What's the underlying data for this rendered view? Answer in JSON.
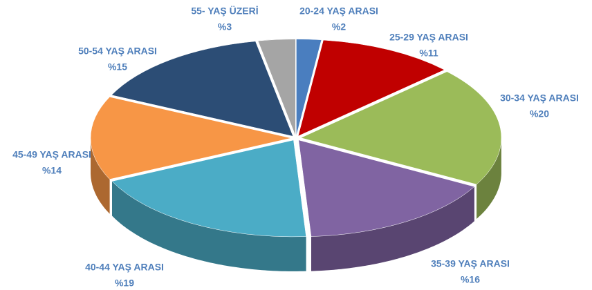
{
  "chart_data": {
    "type": "pie",
    "categories": [
      "20-24 YAŞ ARASI",
      "25-29 YAŞ ARASI",
      "30-34 YAŞ ARASI",
      "35-39 YAŞ ARASI",
      "40-44 YAŞ ARASI",
      "45-49 YAŞ ARASI",
      "50-54 YAŞ ARASI",
      "55- YAŞ ÜZERİ"
    ],
    "values": [
      2,
      11,
      20,
      16,
      19,
      14,
      15,
      3
    ],
    "value_labels": [
      "%2",
      "%11",
      "%20",
      "%16",
      "%19",
      "%14",
      "%15",
      "%3"
    ],
    "colors": [
      "#4a7ebf",
      "#c00000",
      "#9bbb59",
      "#8064a2",
      "#4bacc6",
      "#f79646",
      "#2c4d75",
      "#a5a5a5"
    ]
  }
}
